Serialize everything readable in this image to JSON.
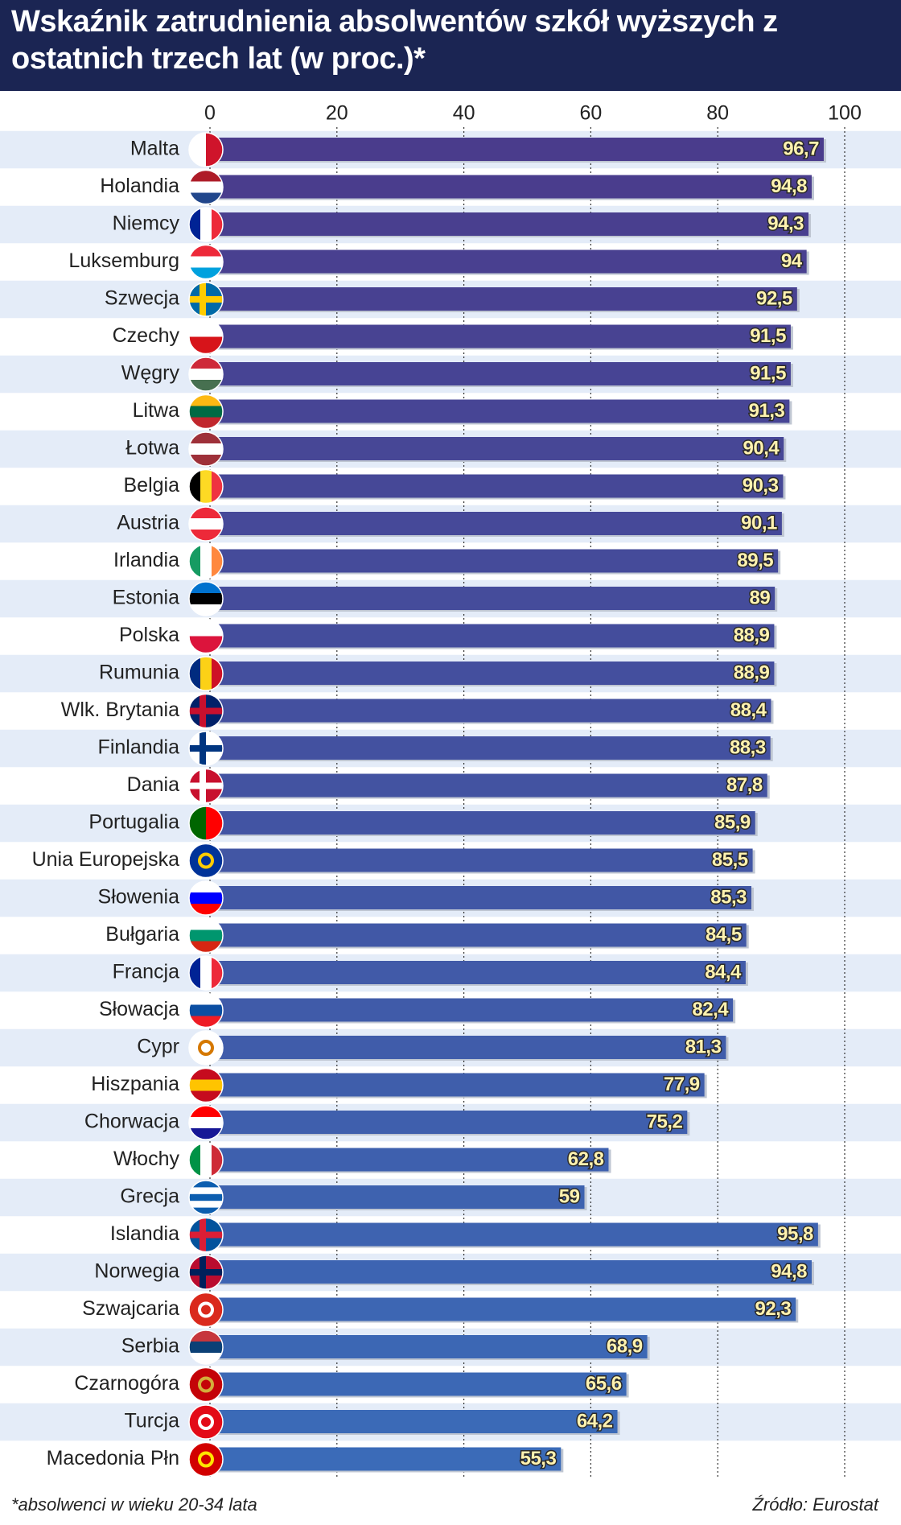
{
  "chart_data": {
    "type": "barh",
    "title": "Wskaźnik zatrudnienia absolwentów szkół wyższych z ostatnich trzech lat (w proc.)*",
    "footnote": "*absolwenci w wieku 20-34 lata",
    "source": "Źródło: Eurostat",
    "categories": [
      "Malta",
      "Holandia",
      "Niemcy",
      "Luksemburg",
      "Szwecja",
      "Czechy",
      "Węgry",
      "Litwa",
      "Łotwa",
      "Belgia",
      "Austria",
      "Irlandia",
      "Estonia",
      "Polska",
      "Rumunia",
      "Wlk. Brytania",
      "Finlandia",
      "Dania",
      "Portugalia",
      "Unia Europejska",
      "Słowenia",
      "Bułgaria",
      "Francja",
      "Słowacja",
      "Cypr",
      "Hiszpania",
      "Chorwacja",
      "Włochy",
      "Grecja",
      "Islandia",
      "Norwegia",
      "Szwajcaria",
      "Serbia",
      "Czarnogóra",
      "Turcja",
      "Macedonia Płn"
    ],
    "values": [
      96.7,
      94.8,
      94.3,
      94,
      92.5,
      91.5,
      91.5,
      91.3,
      90.4,
      90.3,
      90.1,
      89.5,
      89,
      88.9,
      88.9,
      88.4,
      88.3,
      87.8,
      85.9,
      85.5,
      85.3,
      84.5,
      84.4,
      82.4,
      81.3,
      77.9,
      75.2,
      62.8,
      59,
      95.8,
      94.8,
      92.3,
      68.9,
      65.6,
      64.2,
      55.3
    ],
    "value_labels": [
      "96,7",
      "94,8",
      "94,3",
      "94",
      "92,5",
      "91,5",
      "91,5",
      "91,3",
      "90,4",
      "90,3",
      "90,1",
      "89,5",
      "89",
      "88,9",
      "88,9",
      "88,4",
      "88,3",
      "87,8",
      "85,9",
      "85,5",
      "85,3",
      "84,5",
      "84,4",
      "82,4",
      "81,3",
      "77,9",
      "75,2",
      "62,8",
      "59",
      "95,8",
      "94,8",
      "92,3",
      "68,9",
      "65,6",
      "64,2",
      "55,3"
    ],
    "color_top": "#4a3c8c",
    "color_bottom": "#3b6bb8",
    "xlim": [
      0,
      100
    ],
    "xticks": [
      0,
      20,
      40,
      60,
      80,
      100
    ],
    "grid": true
  }
}
